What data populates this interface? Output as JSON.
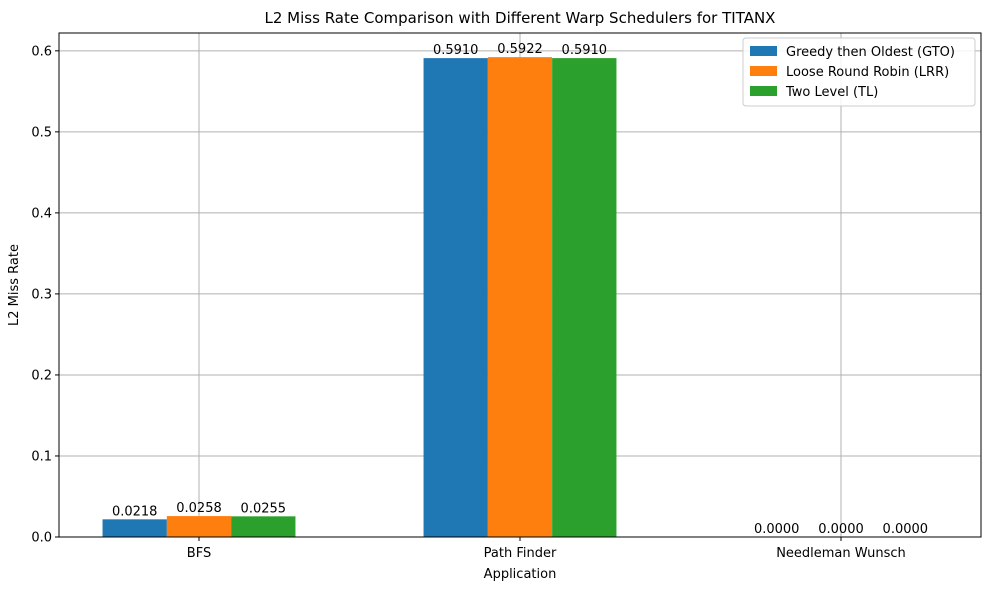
{
  "chart_data": {
    "type": "bar",
    "title": "L2 Miss Rate Comparison with Different Warp Schedulers for TITANX",
    "xlabel": "Application",
    "ylabel": "L2 Miss Rate",
    "categories": [
      "BFS",
      "Path Finder",
      "Needleman Wunsch"
    ],
    "series": [
      {
        "name": "Greedy then Oldest (GTO)",
        "color": "#1f77b4",
        "values": [
          0.0218,
          0.591,
          0.0
        ],
        "labels": [
          "0.0218",
          "0.5910",
          "0.0000"
        ]
      },
      {
        "name": "Loose Round Robin (LRR)",
        "color": "#ff7f0e",
        "values": [
          0.0258,
          0.5922,
          0.0
        ],
        "labels": [
          "0.0258",
          "0.5922",
          "0.0000"
        ]
      },
      {
        "name": "Two Level (TL)",
        "color": "#2ca02c",
        "values": [
          0.0255,
          0.591,
          0.0
        ],
        "labels": [
          "0.0255",
          "0.5910",
          "0.0000"
        ]
      }
    ],
    "ylim": [
      0,
      0.622
    ],
    "yticks": [
      0.0,
      0.1,
      0.2,
      0.3,
      0.4,
      0.5,
      0.6
    ],
    "ytick_labels": [
      "0.0",
      "0.1",
      "0.2",
      "0.3",
      "0.4",
      "0.5",
      "0.6"
    ],
    "grid": true,
    "legend_position": "top-right"
  }
}
